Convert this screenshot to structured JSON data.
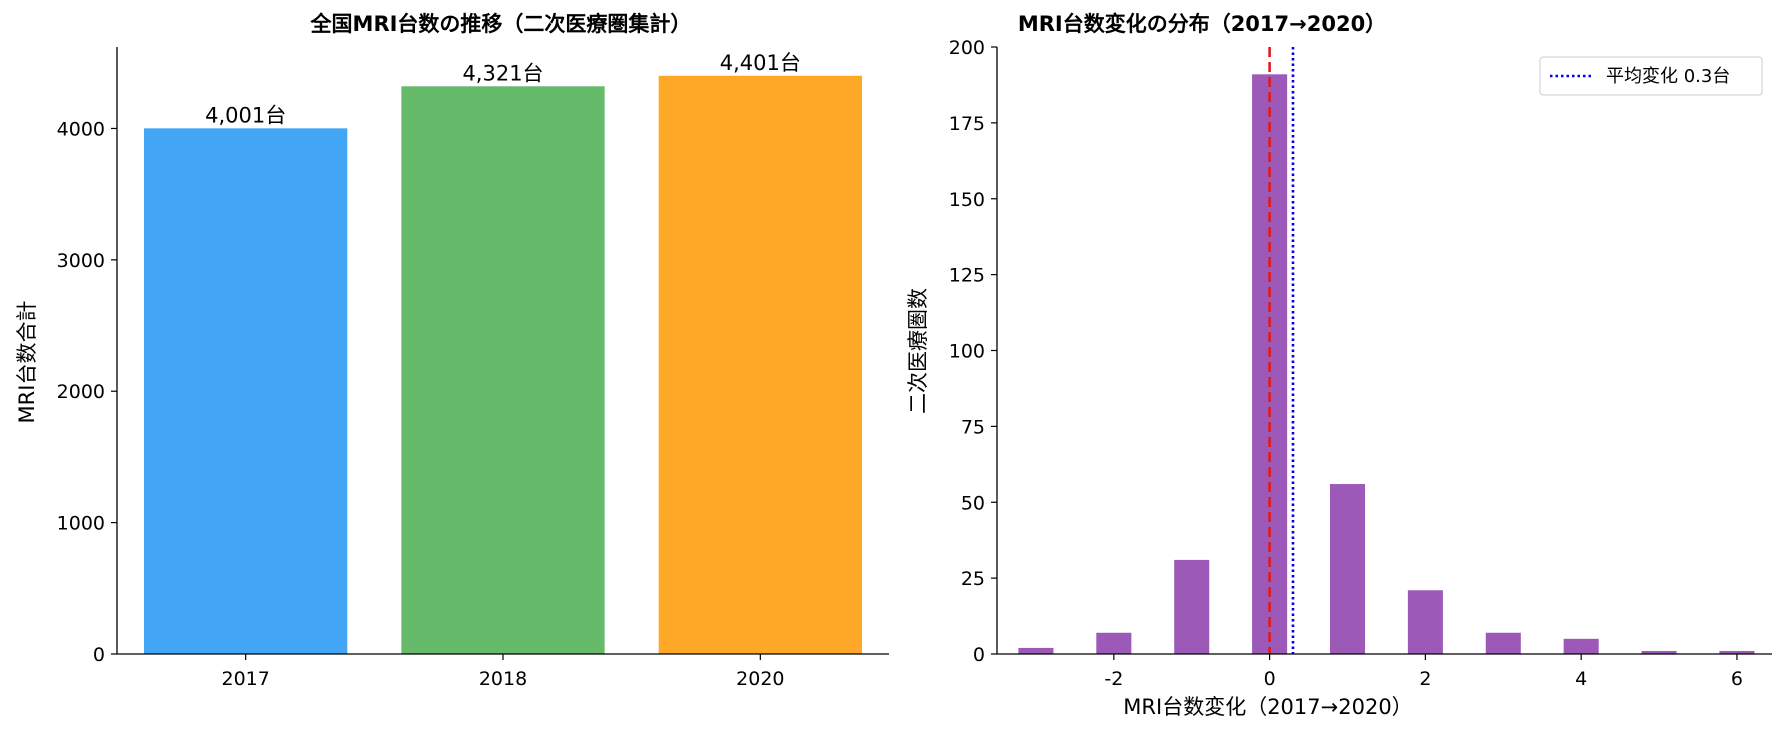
{
  "chart_data": [
    {
      "type": "bar",
      "title": "全国MRI台数の推移（二次医療圏集計）",
      "xlabel": "",
      "ylabel": "MRI台数合計",
      "categories": [
        "2017",
        "2018",
        "2020"
      ],
      "values": [
        4001,
        4321,
        4401
      ],
      "data_labels": [
        "4,001台",
        "4,321台",
        "4,401台"
      ],
      "colors": [
        "#42a5f5",
        "#66bb6a",
        "#ffa726"
      ],
      "ylim": [
        0,
        4620
      ],
      "yticks": [
        0,
        1000,
        2000,
        3000,
        4000
      ],
      "ytick_labels": [
        "0",
        "1000",
        "2000",
        "3000",
        "4000"
      ],
      "grid": false
    },
    {
      "type": "bar",
      "subtype": "histogram",
      "title": "MRI台数変化の分布（2017→2020）",
      "xlabel": "MRI台数変化（2017→2020）",
      "ylabel": "二次医療圏数",
      "color": "#9c59b8",
      "bins": [
        {
          "x": -3,
          "count": 2
        },
        {
          "x": -2,
          "count": 7
        },
        {
          "x": -1,
          "count": 31
        },
        {
          "x": 0,
          "count": 191
        },
        {
          "x": 1,
          "count": 56
        },
        {
          "x": 2,
          "count": 21
        },
        {
          "x": 3,
          "count": 7
        },
        {
          "x": 4,
          "count": 5
        },
        {
          "x": 5,
          "count": 1
        },
        {
          "x": 6,
          "count": 1
        }
      ],
      "bin_width": 0.45,
      "xlim": [
        -3.5,
        6.45
      ],
      "ylim": [
        0,
        200
      ],
      "xticks": [
        -2,
        0,
        2,
        4,
        6
      ],
      "xtick_labels": [
        "-2",
        "0",
        "2",
        "4",
        "6"
      ],
      "yticks": [
        0,
        25,
        50,
        75,
        100,
        125,
        150,
        175,
        200
      ],
      "ytick_labels": [
        "0",
        "25",
        "50",
        "75",
        "100",
        "125",
        "150",
        "175",
        "200"
      ],
      "reference_lines": [
        {
          "x": 0,
          "color": "#e31a1c",
          "style": "dashed"
        },
        {
          "x": 0.3,
          "color": "#0000ee",
          "style": "dotted",
          "label": "平均変化 0.3台"
        }
      ],
      "legend": {
        "placement": "top-right",
        "entries": [
          "平均変化 0.3台"
        ]
      },
      "grid": false
    }
  ]
}
